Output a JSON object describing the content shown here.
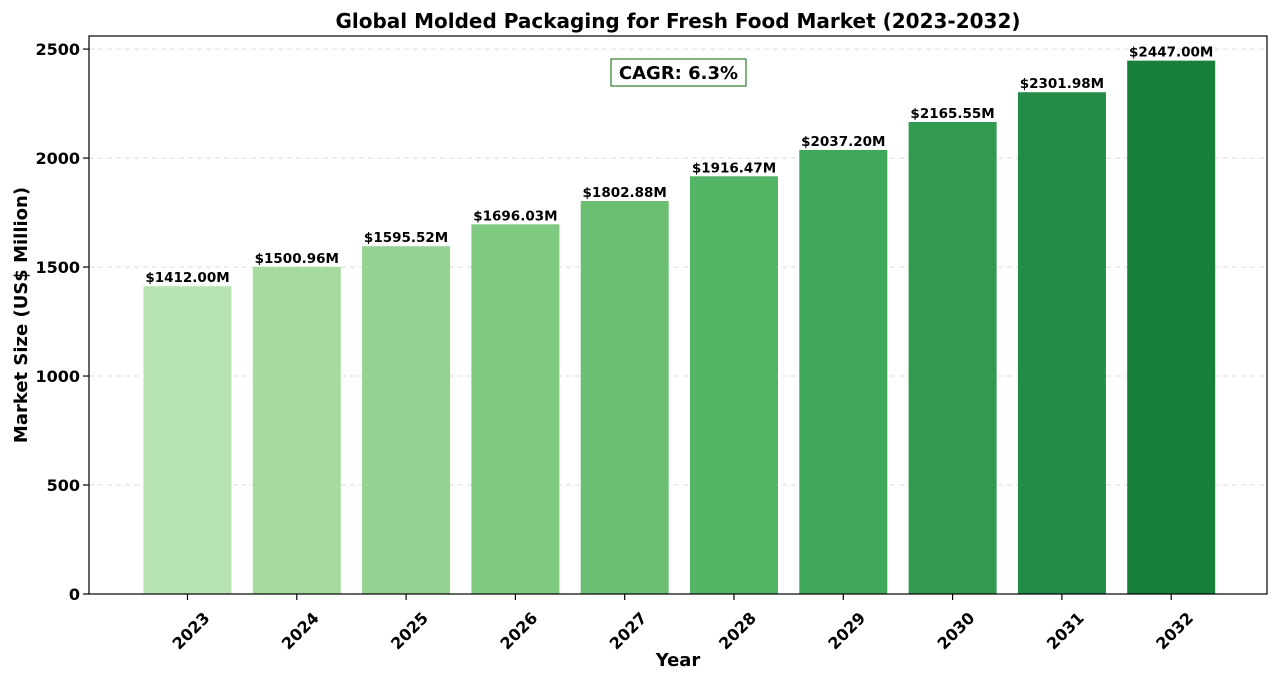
{
  "chart_data": {
    "type": "bar",
    "title": "Global Molded Packaging for Fresh Food Market (2023-2032)",
    "xlabel": "Year",
    "ylabel": "Market Size (US$ Million)",
    "categories": [
      "2023",
      "2024",
      "2025",
      "2026",
      "2027",
      "2028",
      "2029",
      "2030",
      "2031",
      "2032"
    ],
    "values": [
      1412.0,
      1500.96,
      1595.52,
      1696.03,
      1802.88,
      1916.47,
      2037.2,
      2165.55,
      2301.98,
      2447.0
    ],
    "data_labels": [
      "$1412.00M",
      "$1500.96M",
      "$1595.52M",
      "$1696.03M",
      "$1802.88M",
      "$1916.47M",
      "$2037.20M",
      "$2165.55M",
      "$2301.98M",
      "$2447.00M"
    ],
    "bar_colors": [
      "#b7e2b1",
      "#a6dba0",
      "#95d291",
      "#80c980",
      "#6bbf72",
      "#54b466",
      "#40a85b",
      "#319a50",
      "#228b45",
      "#167f3c"
    ],
    "ylim": [
      0,
      2560
    ],
    "yticks": [
      0,
      500,
      1000,
      1500,
      2000,
      2500
    ],
    "grid": "y-dashed",
    "annotation": {
      "text": "CAGR: 6.3%",
      "border_color": "#006400"
    }
  }
}
